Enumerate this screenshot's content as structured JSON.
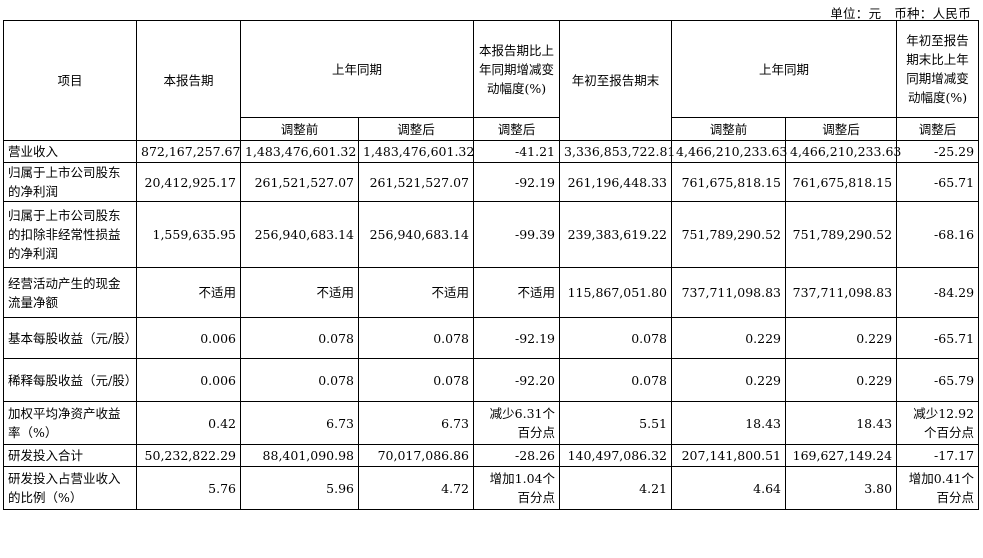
{
  "unit_line": "单位：元　币种：人民币",
  "headers": {
    "item": "项目",
    "current_period": "本报告期",
    "prior_same_period": "上年同期",
    "change_current": "本报告期比上年同期增减变动幅度(%)",
    "ytd": "年初至报告期末",
    "prior_same_period_ytd": "上年同期",
    "change_ytd": "年初至报告期末比上年同期增减变动幅度(%)",
    "before_adj": "调整前",
    "after_adj": "调整后",
    "after_adj_change": "调整后",
    "before_adj_ytd": "调整前",
    "after_adj_ytd": "调整后",
    "after_adj_change_ytd": "调整后"
  },
  "rows": [
    {
      "label": "营业收入",
      "cur": "872,167,257.67",
      "prior_before": "1,483,476,601.32",
      "prior_after": "1,483,476,601.32",
      "chg": "-41.21",
      "ytd": "3,336,853,722.81",
      "ytd_before": "4,466,210,233.63",
      "ytd_after": "4,466,210,233.63",
      "ytd_chg": "-25.29"
    },
    {
      "label": "归属于上市公司股东的净利润",
      "cur": "20,412,925.17",
      "prior_before": "261,521,527.07",
      "prior_after": "261,521,527.07",
      "chg": "-92.19",
      "ytd": "261,196,448.33",
      "ytd_before": "761,675,818.15",
      "ytd_after": "761,675,818.15",
      "ytd_chg": "-65.71"
    },
    {
      "label": "归属于上市公司股东的扣除非经常性损益的净利润",
      "cur": "1,559,635.95",
      "prior_before": "256,940,683.14",
      "prior_after": "256,940,683.14",
      "chg": "-99.39",
      "ytd": "239,383,619.22",
      "ytd_before": "751,789,290.52",
      "ytd_after": "751,789,290.52",
      "ytd_chg": "-68.16"
    },
    {
      "label": "经营活动产生的现金流量净额",
      "cur": "不适用",
      "prior_before": "不适用",
      "prior_after": "不适用",
      "chg": "不适用",
      "ytd": "115,867,051.80",
      "ytd_before": "737,711,098.83",
      "ytd_after": "737,711,098.83",
      "ytd_chg": "-84.29"
    },
    {
      "label": "基本每股收益（元/股）",
      "cur": "0.006",
      "prior_before": "0.078",
      "prior_after": "0.078",
      "chg": "-92.19",
      "ytd": "0.078",
      "ytd_before": "0.229",
      "ytd_after": "0.229",
      "ytd_chg": "-65.71"
    },
    {
      "label": "稀释每股收益（元/股）",
      "cur": "0.006",
      "prior_before": "0.078",
      "prior_after": "0.078",
      "chg": "-92.20",
      "ytd": "0.078",
      "ytd_before": "0.229",
      "ytd_after": "0.229",
      "ytd_chg": "-65.79"
    },
    {
      "label": "加权平均净资产收益率（%）",
      "cur": "0.42",
      "prior_before": "6.73",
      "prior_after": "6.73",
      "chg": "减少6.31个百分点",
      "ytd": "5.51",
      "ytd_before": "18.43",
      "ytd_after": "18.43",
      "ytd_chg": "减少12.92个百分点"
    },
    {
      "label": "研发投入合计",
      "cur": "50,232,822.29",
      "prior_before": "88,401,090.98",
      "prior_after": "70,017,086.86",
      "chg": "-28.26",
      "ytd": "140,497,086.32",
      "ytd_before": "207,141,800.51",
      "ytd_after": "169,627,149.24",
      "ytd_chg": "-17.17"
    },
    {
      "label": "研发投入占营业收入的比例（%）",
      "cur": "5.76",
      "prior_before": "5.96",
      "prior_after": "4.72",
      "chg": "增加1.04个百分点",
      "ytd": "4.21",
      "ytd_before": "4.64",
      "ytd_after": "3.80",
      "ytd_chg": "增加0.41个百分点"
    }
  ]
}
